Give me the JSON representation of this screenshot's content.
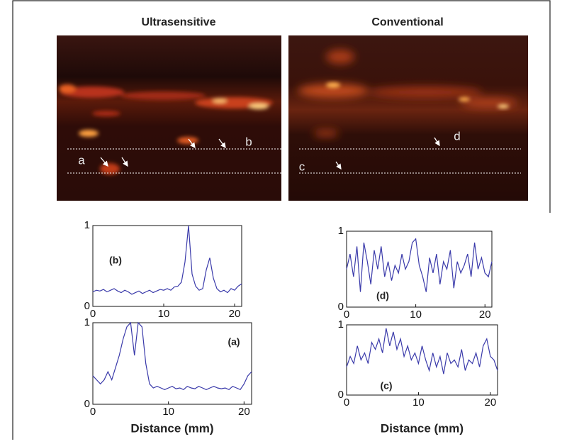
{
  "images": [
    {
      "title": "Ultrasensitive",
      "markers": [
        "a",
        "b"
      ]
    },
    {
      "title": "Conventional",
      "markers": [
        "c",
        "d"
      ]
    }
  ],
  "chart_data": [
    {
      "type": "line",
      "label": "(b)",
      "color": "#3a3aaa",
      "x": [
        0,
        0.5,
        1,
        1.5,
        2,
        2.5,
        3,
        3.5,
        4,
        4.5,
        5,
        5.5,
        6,
        6.5,
        7,
        7.5,
        8,
        8.5,
        9,
        9.5,
        10,
        10.5,
        11,
        11.5,
        12,
        12.5,
        13,
        13.5,
        14,
        14.5,
        15,
        15.5,
        16,
        16.5,
        17,
        17.5,
        18,
        18.5,
        19,
        19.5,
        20,
        20.5,
        21
      ],
      "values": [
        0.18,
        0.2,
        0.19,
        0.21,
        0.18,
        0.2,
        0.22,
        0.19,
        0.17,
        0.2,
        0.18,
        0.15,
        0.17,
        0.19,
        0.16,
        0.18,
        0.2,
        0.17,
        0.19,
        0.21,
        0.2,
        0.22,
        0.2,
        0.24,
        0.25,
        0.3,
        0.55,
        1.0,
        0.4,
        0.25,
        0.2,
        0.22,
        0.45,
        0.6,
        0.35,
        0.22,
        0.18,
        0.2,
        0.17,
        0.22,
        0.2,
        0.25,
        0.28
      ],
      "xlim": [
        0,
        21
      ],
      "ylim": [
        0,
        1
      ],
      "xticks": [
        0,
        10,
        20
      ],
      "yticks": [
        0,
        1
      ]
    },
    {
      "type": "line",
      "label": "(a)",
      "color": "#3a3aaa",
      "x_label": "Distance (mm)",
      "x": [
        0,
        0.5,
        1,
        1.5,
        2,
        2.5,
        3,
        3.5,
        4,
        4.5,
        5,
        5.5,
        6,
        6.5,
        7,
        7.5,
        8,
        8.5,
        9,
        9.5,
        10,
        10.5,
        11,
        11.5,
        12,
        12.5,
        13,
        13.5,
        14,
        14.5,
        15,
        15.5,
        16,
        16.5,
        17,
        17.5,
        18,
        18.5,
        19,
        19.5,
        20,
        20.5,
        21
      ],
      "values": [
        0.35,
        0.3,
        0.25,
        0.3,
        0.4,
        0.3,
        0.45,
        0.6,
        0.8,
        0.95,
        1.0,
        0.6,
        1.0,
        0.95,
        0.5,
        0.25,
        0.2,
        0.22,
        0.2,
        0.18,
        0.2,
        0.22,
        0.19,
        0.2,
        0.18,
        0.22,
        0.2,
        0.19,
        0.22,
        0.2,
        0.18,
        0.2,
        0.22,
        0.2,
        0.19,
        0.2,
        0.18,
        0.22,
        0.2,
        0.18,
        0.25,
        0.35,
        0.4
      ],
      "xlim": [
        0,
        21
      ],
      "ylim": [
        0,
        1
      ],
      "xticks": [
        0,
        10,
        20
      ],
      "yticks": [
        0,
        1
      ]
    },
    {
      "type": "line",
      "label": "(d)",
      "color": "#3a3aaa",
      "x": [
        0,
        0.5,
        1,
        1.5,
        2,
        2.5,
        3,
        3.5,
        4,
        4.5,
        5,
        5.5,
        6,
        6.5,
        7,
        7.5,
        8,
        8.5,
        9,
        9.5,
        10,
        10.5,
        11,
        11.5,
        12,
        12.5,
        13,
        13.5,
        14,
        14.5,
        15,
        15.5,
        16,
        16.5,
        17,
        17.5,
        18,
        18.5,
        19,
        19.5,
        20,
        20.5,
        21
      ],
      "values": [
        0.5,
        0.7,
        0.4,
        0.8,
        0.2,
        0.85,
        0.6,
        0.3,
        0.75,
        0.5,
        0.8,
        0.4,
        0.6,
        0.35,
        0.55,
        0.45,
        0.7,
        0.5,
        0.6,
        0.85,
        0.9,
        0.55,
        0.4,
        0.2,
        0.65,
        0.45,
        0.7,
        0.3,
        0.6,
        0.5,
        0.75,
        0.25,
        0.6,
        0.45,
        0.55,
        0.7,
        0.4,
        0.85,
        0.5,
        0.65,
        0.45,
        0.4,
        0.6
      ],
      "xlim": [
        0,
        21
      ],
      "ylim": [
        0,
        1
      ],
      "xticks": [
        0,
        10,
        20
      ],
      "yticks": [
        0,
        1
      ]
    },
    {
      "type": "line",
      "label": "(c)",
      "color": "#3a3aaa",
      "x_label": "Distance (mm)",
      "x": [
        0,
        0.5,
        1,
        1.5,
        2,
        2.5,
        3,
        3.5,
        4,
        4.5,
        5,
        5.5,
        6,
        6.5,
        7,
        7.5,
        8,
        8.5,
        9,
        9.5,
        10,
        10.5,
        11,
        11.5,
        12,
        12.5,
        13,
        13.5,
        14,
        14.5,
        15,
        15.5,
        16,
        16.5,
        17,
        17.5,
        18,
        18.5,
        19,
        19.5,
        20,
        20.5,
        21
      ],
      "values": [
        0.4,
        0.55,
        0.45,
        0.7,
        0.5,
        0.6,
        0.45,
        0.75,
        0.65,
        0.8,
        0.6,
        0.95,
        0.7,
        0.9,
        0.65,
        0.8,
        0.55,
        0.7,
        0.5,
        0.6,
        0.45,
        0.7,
        0.5,
        0.35,
        0.6,
        0.4,
        0.55,
        0.3,
        0.6,
        0.45,
        0.5,
        0.4,
        0.65,
        0.35,
        0.5,
        0.45,
        0.6,
        0.4,
        0.7,
        0.8,
        0.55,
        0.5,
        0.35
      ],
      "xlim": [
        0,
        21
      ],
      "ylim": [
        0,
        1
      ],
      "xticks": [
        0,
        10,
        20
      ],
      "yticks": [
        0,
        1
      ]
    }
  ]
}
